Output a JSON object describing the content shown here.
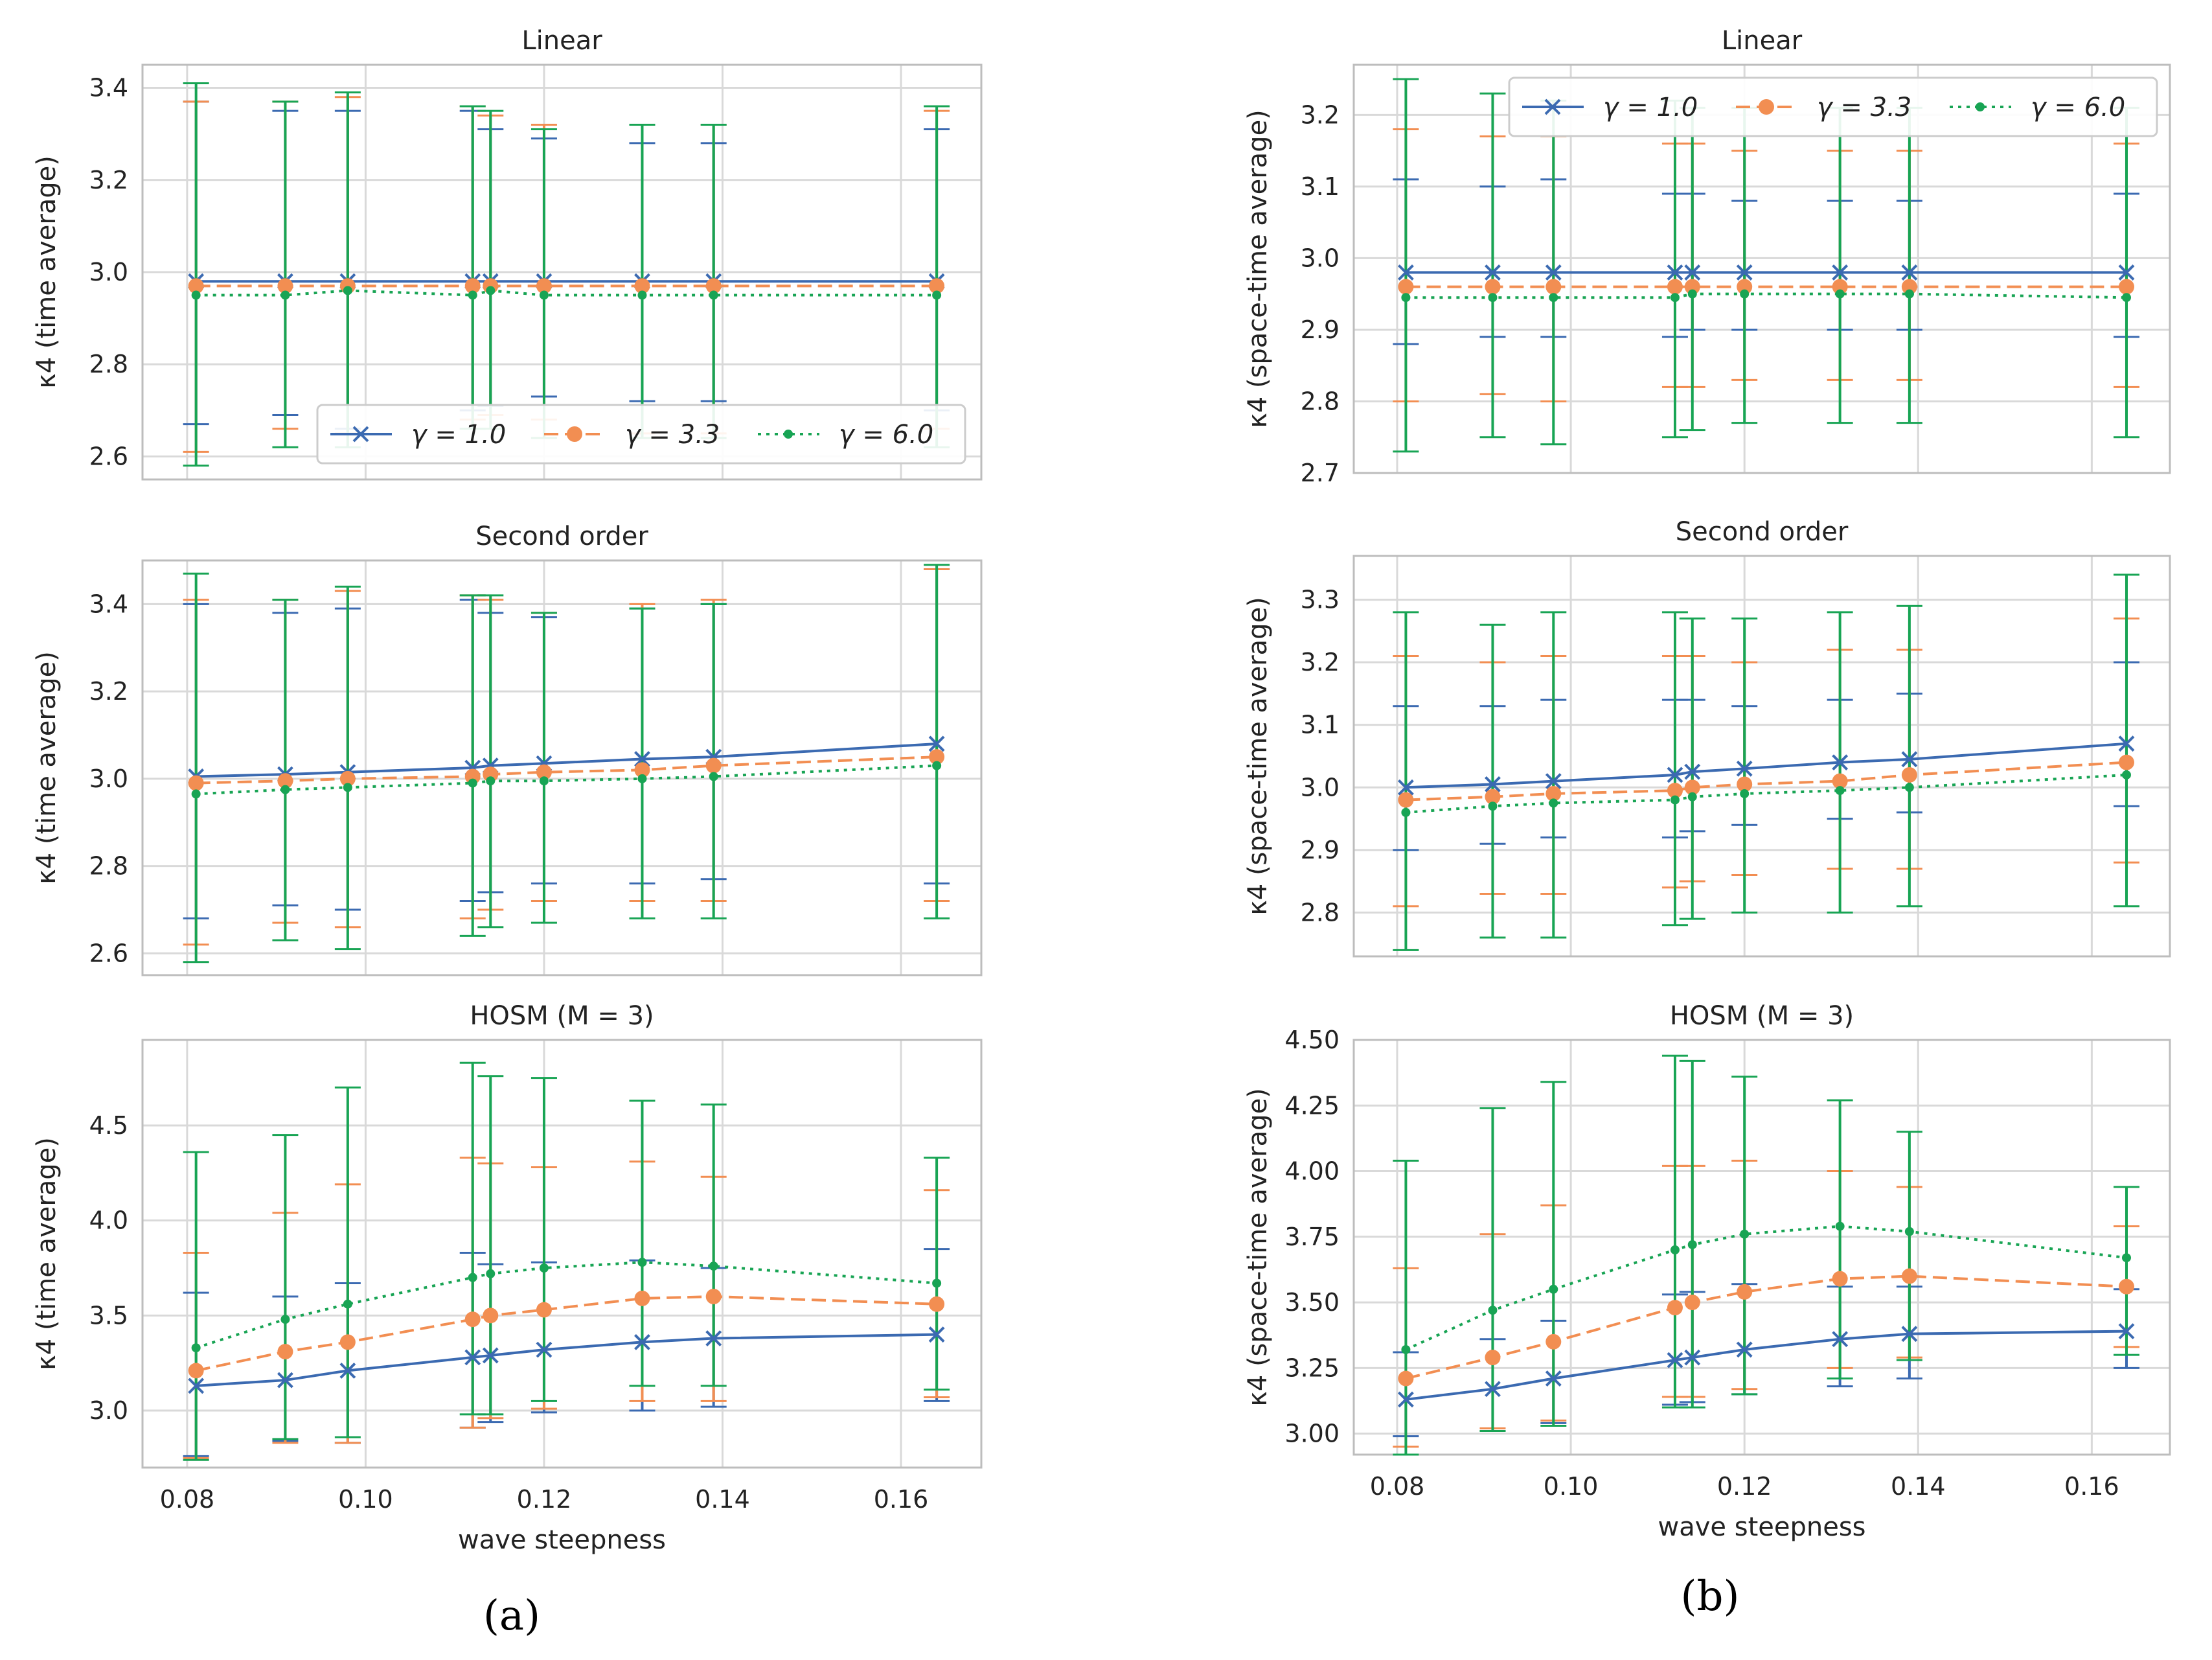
{
  "figure": {
    "label_a": "(a)",
    "label_b": "(b)"
  },
  "colors": {
    "g1": "#3b6ab1",
    "g2": "#f28e52",
    "g3": "#18a454",
    "grid": "#d9d9d9",
    "frame": "#bdbdbd"
  },
  "x_values": [
    0.081,
    0.091,
    0.098,
    0.112,
    0.114,
    0.12,
    0.131,
    0.139,
    0.164
  ],
  "legend_labels": [
    "γ = 1.0",
    "γ = 3.3",
    "γ = 6.0"
  ],
  "chart_data": [
    {
      "id": "a_linear",
      "type": "line",
      "title": "Linear",
      "xlabel": "",
      "ylabel": "κ4 (time average)",
      "xlim": [
        0.075,
        0.169
      ],
      "ylim": [
        2.55,
        3.45
      ],
      "xticks": [],
      "yticks": [
        "2.6",
        "2.8",
        "3.0",
        "3.2",
        "3.4"
      ],
      "legend": "lower-right",
      "series": [
        {
          "name": "γ = 1.0",
          "values": [
            2.98,
            2.98,
            2.98,
            2.98,
            2.98,
            2.98,
            2.98,
            2.98,
            2.98
          ],
          "lo": [
            2.67,
            2.69,
            2.66,
            2.7,
            2.71,
            2.73,
            2.72,
            2.72,
            2.7
          ],
          "hi": [
            3.37,
            3.35,
            3.35,
            3.35,
            3.31,
            3.29,
            3.28,
            3.28,
            3.31
          ]
        },
        {
          "name": "γ = 3.3",
          "values": [
            2.97,
            2.97,
            2.97,
            2.97,
            2.97,
            2.97,
            2.97,
            2.97,
            2.97
          ],
          "lo": [
            2.61,
            2.66,
            2.65,
            2.68,
            2.69,
            2.68,
            2.65,
            2.65,
            2.66
          ],
          "hi": [
            3.37,
            3.37,
            3.38,
            3.36,
            3.34,
            3.32,
            3.32,
            3.32,
            3.35
          ]
        },
        {
          "name": "γ = 6.0",
          "values": [
            2.95,
            2.95,
            2.96,
            2.95,
            2.96,
            2.95,
            2.95,
            2.95,
            2.95
          ],
          "lo": [
            2.58,
            2.62,
            2.62,
            2.66,
            2.66,
            2.64,
            2.64,
            2.64,
            2.62
          ],
          "hi": [
            3.41,
            3.37,
            3.39,
            3.36,
            3.35,
            3.31,
            3.32,
            3.32,
            3.36
          ]
        }
      ]
    },
    {
      "id": "a_second",
      "type": "line",
      "title": "Second order",
      "xlabel": "",
      "ylabel": "κ4 (time average)",
      "xlim": [
        0.075,
        0.169
      ],
      "ylim": [
        2.55,
        3.5
      ],
      "xticks": [],
      "yticks": [
        "2.6",
        "2.8",
        "3.0",
        "3.2",
        "3.4"
      ],
      "legend": "none",
      "series": [
        {
          "name": "γ = 1.0",
          "values": [
            3.005,
            3.01,
            3.015,
            3.025,
            3.03,
            3.035,
            3.045,
            3.05,
            3.08
          ],
          "lo": [
            2.68,
            2.71,
            2.7,
            2.72,
            2.74,
            2.76,
            2.76,
            2.77,
            2.76
          ],
          "hi": [
            3.4,
            3.38,
            3.39,
            3.41,
            3.38,
            3.37,
            3.39,
            3.4,
            3.48
          ]
        },
        {
          "name": "γ = 3.3",
          "values": [
            2.99,
            2.995,
            3.0,
            3.005,
            3.01,
            3.015,
            3.02,
            3.03,
            3.05
          ],
          "lo": [
            2.62,
            2.67,
            2.66,
            2.68,
            2.7,
            2.72,
            2.72,
            2.72,
            2.72
          ],
          "hi": [
            3.41,
            3.41,
            3.43,
            3.42,
            3.41,
            3.38,
            3.4,
            3.41,
            3.48
          ]
        },
        {
          "name": "γ = 6.0",
          "values": [
            2.965,
            2.975,
            2.98,
            2.99,
            2.995,
            2.995,
            3.0,
            3.005,
            3.03
          ],
          "lo": [
            2.58,
            2.63,
            2.61,
            2.64,
            2.66,
            2.67,
            2.68,
            2.68,
            2.68
          ],
          "hi": [
            3.47,
            3.41,
            3.44,
            3.42,
            3.42,
            3.38,
            3.39,
            3.4,
            3.49
          ]
        }
      ]
    },
    {
      "id": "a_hosm",
      "type": "line",
      "title": "HOSM (M = 3)",
      "xlabel": "wave steepness",
      "ylabel": "κ4 (time average)",
      "xlim": [
        0.075,
        0.169
      ],
      "ylim": [
        2.7,
        4.95
      ],
      "xticks": [
        "0.08",
        "0.10",
        "0.12",
        "0.14",
        "0.16"
      ],
      "yticks": [
        "3.0",
        "3.5",
        "4.0",
        "4.5"
      ],
      "legend": "none",
      "series": [
        {
          "name": "γ = 1.0",
          "values": [
            3.13,
            3.16,
            3.21,
            3.28,
            3.29,
            3.32,
            3.36,
            3.38,
            3.4
          ],
          "lo": [
            2.76,
            2.84,
            2.83,
            2.91,
            2.94,
            2.99,
            3.0,
            3.02,
            3.05
          ],
          "hi": [
            3.62,
            3.6,
            3.67,
            3.83,
            3.77,
            3.78,
            3.79,
            3.75,
            3.85
          ]
        },
        {
          "name": "γ = 3.3",
          "values": [
            3.21,
            3.31,
            3.36,
            3.48,
            3.5,
            3.53,
            3.59,
            3.6,
            3.56
          ],
          "lo": [
            2.75,
            2.83,
            2.83,
            2.91,
            2.96,
            3.01,
            3.05,
            3.05,
            3.07
          ],
          "hi": [
            3.83,
            4.04,
            4.19,
            4.33,
            4.3,
            4.28,
            4.31,
            4.23,
            4.16
          ]
        },
        {
          "name": "γ = 6.0",
          "values": [
            3.33,
            3.48,
            3.56,
            3.7,
            3.72,
            3.75,
            3.78,
            3.76,
            3.67
          ],
          "lo": [
            2.74,
            2.85,
            2.86,
            2.98,
            2.98,
            3.05,
            3.13,
            3.13,
            3.11
          ],
          "hi": [
            4.36,
            4.45,
            4.7,
            4.83,
            4.76,
            4.75,
            4.63,
            4.61,
            4.33
          ]
        }
      ]
    },
    {
      "id": "b_linear",
      "type": "line",
      "title": "Linear",
      "xlabel": "",
      "ylabel": "κ4 (space-time average)",
      "xlim": [
        0.075,
        0.169
      ],
      "ylim": [
        2.7,
        3.27
      ],
      "xticks": [],
      "yticks": [
        "2.7",
        "2.8",
        "2.9",
        "3.0",
        "3.1",
        "3.2"
      ],
      "legend": "top",
      "series": [
        {
          "name": "γ = 1.0",
          "values": [
            2.98,
            2.98,
            2.98,
            2.98,
            2.98,
            2.98,
            2.98,
            2.98,
            2.98
          ],
          "lo": [
            2.88,
            2.89,
            2.89,
            2.89,
            2.9,
            2.9,
            2.9,
            2.9,
            2.89
          ],
          "hi": [
            3.11,
            3.1,
            3.11,
            3.09,
            3.09,
            3.08,
            3.08,
            3.08,
            3.09
          ]
        },
        {
          "name": "γ = 3.3",
          "values": [
            2.96,
            2.96,
            2.96,
            2.96,
            2.96,
            2.96,
            2.96,
            2.96,
            2.96
          ],
          "lo": [
            2.8,
            2.81,
            2.8,
            2.82,
            2.82,
            2.83,
            2.83,
            2.83,
            2.82
          ],
          "hi": [
            3.18,
            3.17,
            3.17,
            3.16,
            3.16,
            3.15,
            3.15,
            3.15,
            3.16
          ]
        },
        {
          "name": "γ = 6.0",
          "values": [
            2.945,
            2.945,
            2.945,
            2.945,
            2.95,
            2.95,
            2.95,
            2.95,
            2.945
          ],
          "lo": [
            2.73,
            2.75,
            2.74,
            2.75,
            2.76,
            2.77,
            2.77,
            2.77,
            2.75
          ],
          "hi": [
            3.25,
            3.23,
            3.22,
            3.22,
            3.21,
            3.21,
            3.21,
            3.21,
            3.21
          ]
        }
      ]
    },
    {
      "id": "b_second",
      "type": "line",
      "title": "Second order",
      "xlabel": "",
      "ylabel": "κ4 (space-time average)",
      "xlim": [
        0.075,
        0.169
      ],
      "ylim": [
        2.73,
        3.37
      ],
      "xticks": [],
      "yticks": [
        "2.8",
        "2.9",
        "3.0",
        "3.1",
        "3.2",
        "3.3"
      ],
      "legend": "none",
      "series": [
        {
          "name": "γ = 1.0",
          "values": [
            3.0,
            3.005,
            3.01,
            3.02,
            3.025,
            3.03,
            3.04,
            3.045,
            3.07
          ],
          "lo": [
            2.9,
            2.91,
            2.92,
            2.92,
            2.93,
            2.94,
            2.95,
            2.96,
            2.97
          ],
          "hi": [
            3.13,
            3.13,
            3.14,
            3.14,
            3.14,
            3.13,
            3.14,
            3.15,
            3.2
          ]
        },
        {
          "name": "γ = 3.3",
          "values": [
            2.98,
            2.985,
            2.99,
            2.995,
            3.0,
            3.005,
            3.01,
            3.02,
            3.04
          ],
          "lo": [
            2.81,
            2.83,
            2.83,
            2.84,
            2.85,
            2.86,
            2.87,
            2.87,
            2.88
          ],
          "hi": [
            3.21,
            3.2,
            3.21,
            3.21,
            3.21,
            3.2,
            3.22,
            3.22,
            3.27
          ]
        },
        {
          "name": "γ = 6.0",
          "values": [
            2.96,
            2.97,
            2.975,
            2.98,
            2.985,
            2.99,
            2.995,
            3.0,
            3.02
          ],
          "lo": [
            2.74,
            2.76,
            2.76,
            2.78,
            2.79,
            2.8,
            2.8,
            2.81,
            2.81
          ],
          "hi": [
            3.28,
            3.26,
            3.28,
            3.28,
            3.27,
            3.27,
            3.28,
            3.29,
            3.34
          ]
        }
      ]
    },
    {
      "id": "b_hosm",
      "type": "line",
      "title": "HOSM (M = 3)",
      "xlabel": "wave steepness",
      "ylabel": "κ4 (space-time average)",
      "xlim": [
        0.075,
        0.169
      ],
      "ylim": [
        2.92,
        4.5
      ],
      "xticks": [
        "0.08",
        "0.10",
        "0.12",
        "0.14",
        "0.16"
      ],
      "yticks": [
        "3.00",
        "3.25",
        "3.50",
        "3.75",
        "4.00",
        "4.25",
        "4.50"
      ],
      "legend": "none",
      "series": [
        {
          "name": "γ = 1.0",
          "values": [
            3.13,
            3.17,
            3.21,
            3.28,
            3.29,
            3.32,
            3.36,
            3.38,
            3.39
          ],
          "lo": [
            2.99,
            3.01,
            3.04,
            3.11,
            3.12,
            3.15,
            3.18,
            3.21,
            3.25
          ],
          "hi": [
            3.31,
            3.36,
            3.43,
            3.53,
            3.54,
            3.57,
            3.56,
            3.56,
            3.55
          ]
        },
        {
          "name": "γ = 3.3",
          "values": [
            3.21,
            3.29,
            3.35,
            3.48,
            3.5,
            3.54,
            3.59,
            3.6,
            3.56
          ],
          "lo": [
            2.95,
            3.02,
            3.05,
            3.14,
            3.14,
            3.17,
            3.25,
            3.29,
            3.33
          ],
          "hi": [
            3.63,
            3.76,
            3.87,
            4.02,
            4.02,
            4.04,
            4.0,
            3.94,
            3.79
          ]
        },
        {
          "name": "γ = 6.0",
          "values": [
            3.32,
            3.47,
            3.55,
            3.7,
            3.72,
            3.76,
            3.79,
            3.77,
            3.67
          ],
          "lo": [
            2.92,
            3.01,
            3.03,
            3.1,
            3.1,
            3.15,
            3.21,
            3.28,
            3.3
          ],
          "hi": [
            4.04,
            4.24,
            4.34,
            4.44,
            4.42,
            4.36,
            4.27,
            4.15,
            3.94
          ]
        }
      ]
    }
  ]
}
